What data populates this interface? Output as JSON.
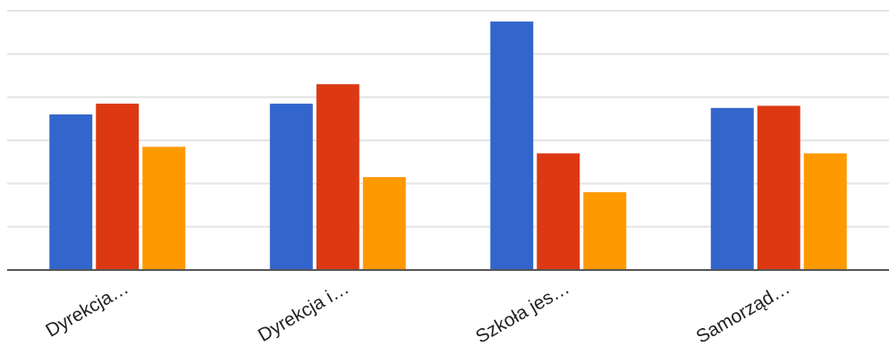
{
  "chart_data": {
    "type": "bar",
    "title": "",
    "xlabel": "",
    "ylabel": "",
    "categories": [
      "Dyrekcja…",
      "Dyrekcja i…",
      "Szkoła jes…",
      "Samorząd…"
    ],
    "series": [
      {
        "values": [
          3.6,
          3.85,
          5.75,
          3.75
        ]
      },
      {
        "values": [
          3.85,
          4.3,
          2.7,
          3.8
        ]
      },
      {
        "values": [
          2.85,
          2.15,
          1.8,
          2.7
        ]
      }
    ],
    "ylim": [
      0,
      6
    ],
    "gridlines": [
      0,
      1,
      2,
      3,
      4,
      5,
      6
    ],
    "grid": true,
    "legend": "none",
    "colors": [
      "#3366cc",
      "#dc3912",
      "#ff9900"
    ],
    "grid_color": "#e4e4e4",
    "axis_color": "#555555"
  }
}
